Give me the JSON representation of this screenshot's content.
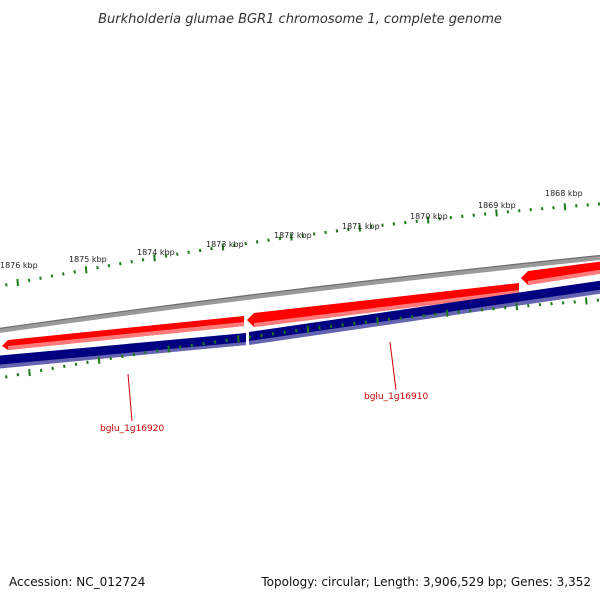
{
  "title": "Burkholderia glumae BGR1 chromosome 1, complete genome",
  "footer": {
    "accession": "Accession: NC_012724",
    "summary": "Topology: circular; Length: 3,906,529 bp; Genes: 3,352"
  },
  "colors": {
    "backbone": "#808080",
    "forward_gene": "#ff0000",
    "forward_gene_light": "#ff8080",
    "reverse_gene": "#000080",
    "reverse_gene_light": "#6666b3",
    "ticks": "#1a7a1a",
    "gene_label": "#cc0000"
  },
  "ticks": [
    {
      "kbp": 1876,
      "label": "1876 kbp"
    },
    {
      "kbp": 1875,
      "label": "1875 kbp"
    },
    {
      "kbp": 1874,
      "label": "1874 kbp"
    },
    {
      "kbp": 1873,
      "label": "1873 kbp"
    },
    {
      "kbp": 1872,
      "label": "1872 kbp"
    },
    {
      "kbp": 1871,
      "label": "1871 kbp"
    },
    {
      "kbp": 1870,
      "label": "1870 kbp"
    },
    {
      "kbp": 1869,
      "label": "1869 kbp"
    },
    {
      "kbp": 1868,
      "label": "1868 kbp"
    }
  ],
  "genes": [
    {
      "name": "bglu_1g16910"
    },
    {
      "name": "bglu_1g16920"
    }
  ]
}
